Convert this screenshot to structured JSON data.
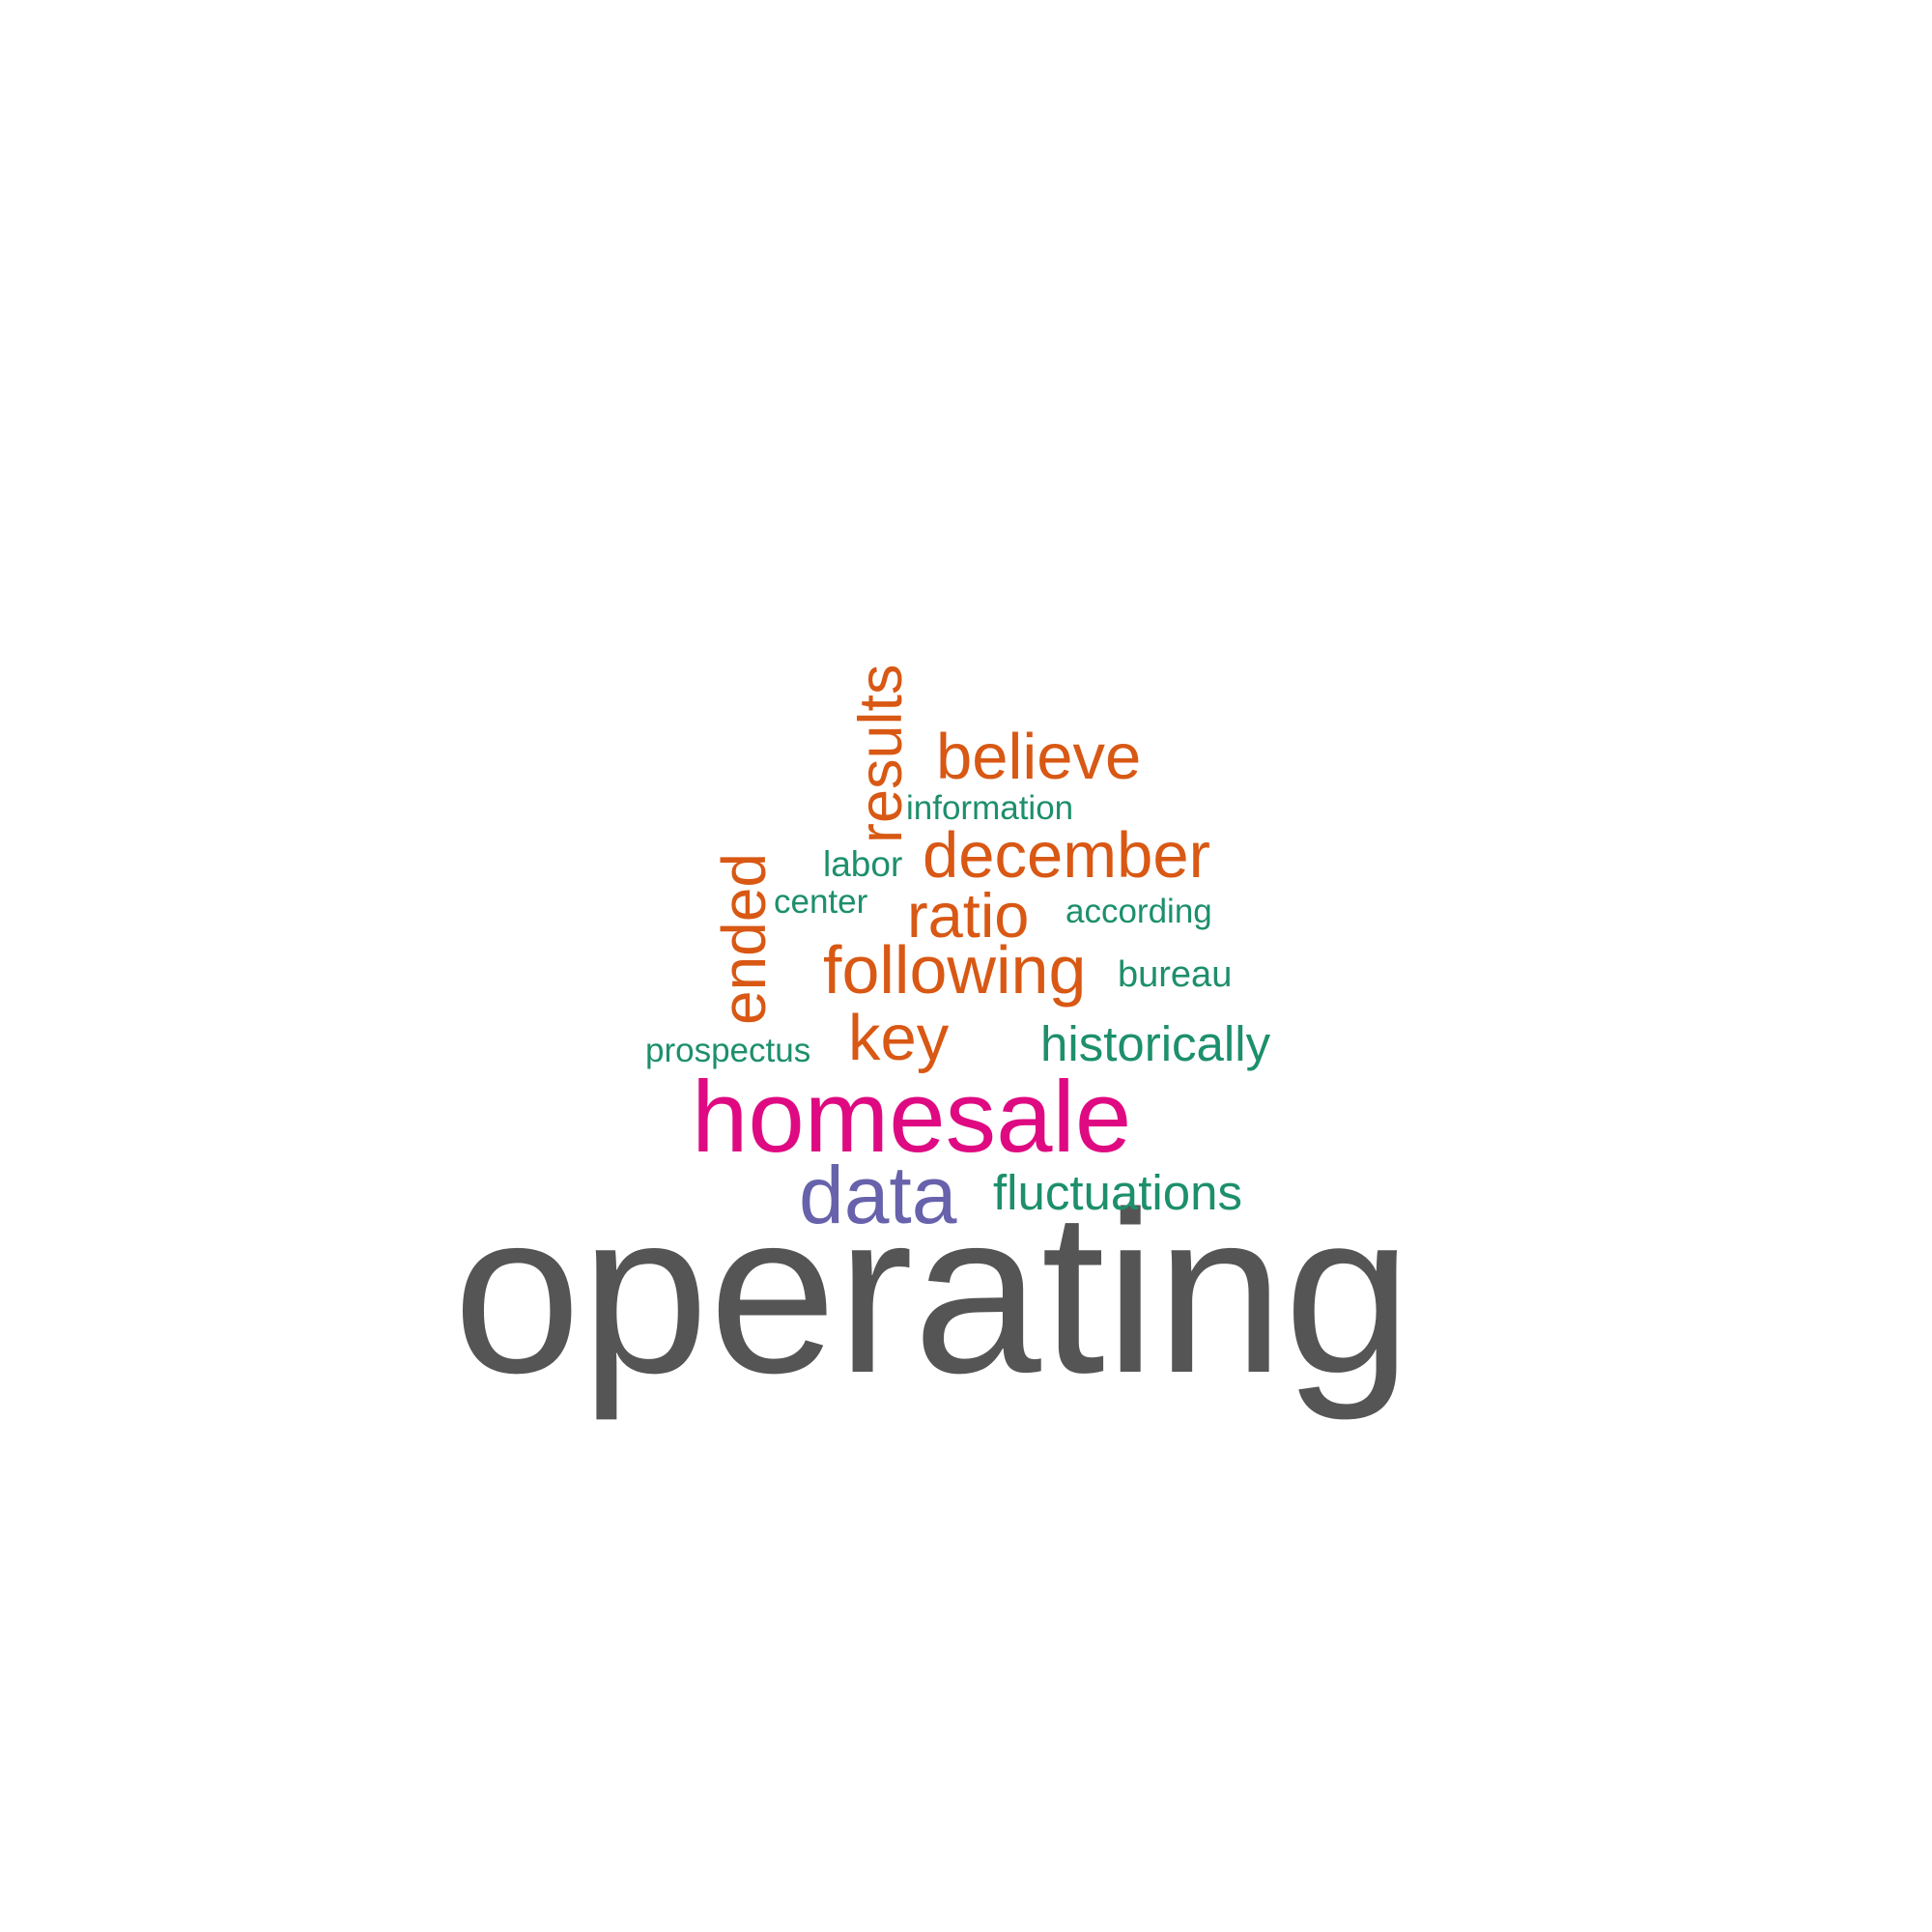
{
  "colors": {
    "background": "#ffffff",
    "gray": "#555555",
    "magenta": "#df0a82",
    "purple": "#6762ab",
    "orange": "#d85814",
    "green": "#1d8f6c"
  },
  "words": {
    "operating": {
      "text": "operating",
      "color": "#555555"
    },
    "homesale": {
      "text": "homesale",
      "color": "#df0a82"
    },
    "data": {
      "text": "data",
      "color": "#6762ab"
    },
    "believe": {
      "text": "believe",
      "color": "#d85814"
    },
    "december": {
      "text": "december",
      "color": "#d85814"
    },
    "ratio": {
      "text": "ratio",
      "color": "#d85814"
    },
    "following": {
      "text": "following",
      "color": "#d85814"
    },
    "key": {
      "text": "key",
      "color": "#d85814"
    },
    "results": {
      "text": "results",
      "color": "#d85814"
    },
    "ended": {
      "text": "ended",
      "color": "#d85814"
    },
    "historically": {
      "text": "historically",
      "color": "#1d8f6c"
    },
    "fluctuations": {
      "text": "fluctuations",
      "color": "#1d8f6c"
    },
    "information": {
      "text": "information",
      "color": "#1d8f6c"
    },
    "labor": {
      "text": "labor",
      "color": "#1d8f6c"
    },
    "center": {
      "text": "center",
      "color": "#1d8f6c"
    },
    "according": {
      "text": "according",
      "color": "#1d8f6c"
    },
    "bureau": {
      "text": "bureau",
      "color": "#1d8f6c"
    },
    "prospectus": {
      "text": "prospectus",
      "color": "#1d8f6c"
    }
  }
}
